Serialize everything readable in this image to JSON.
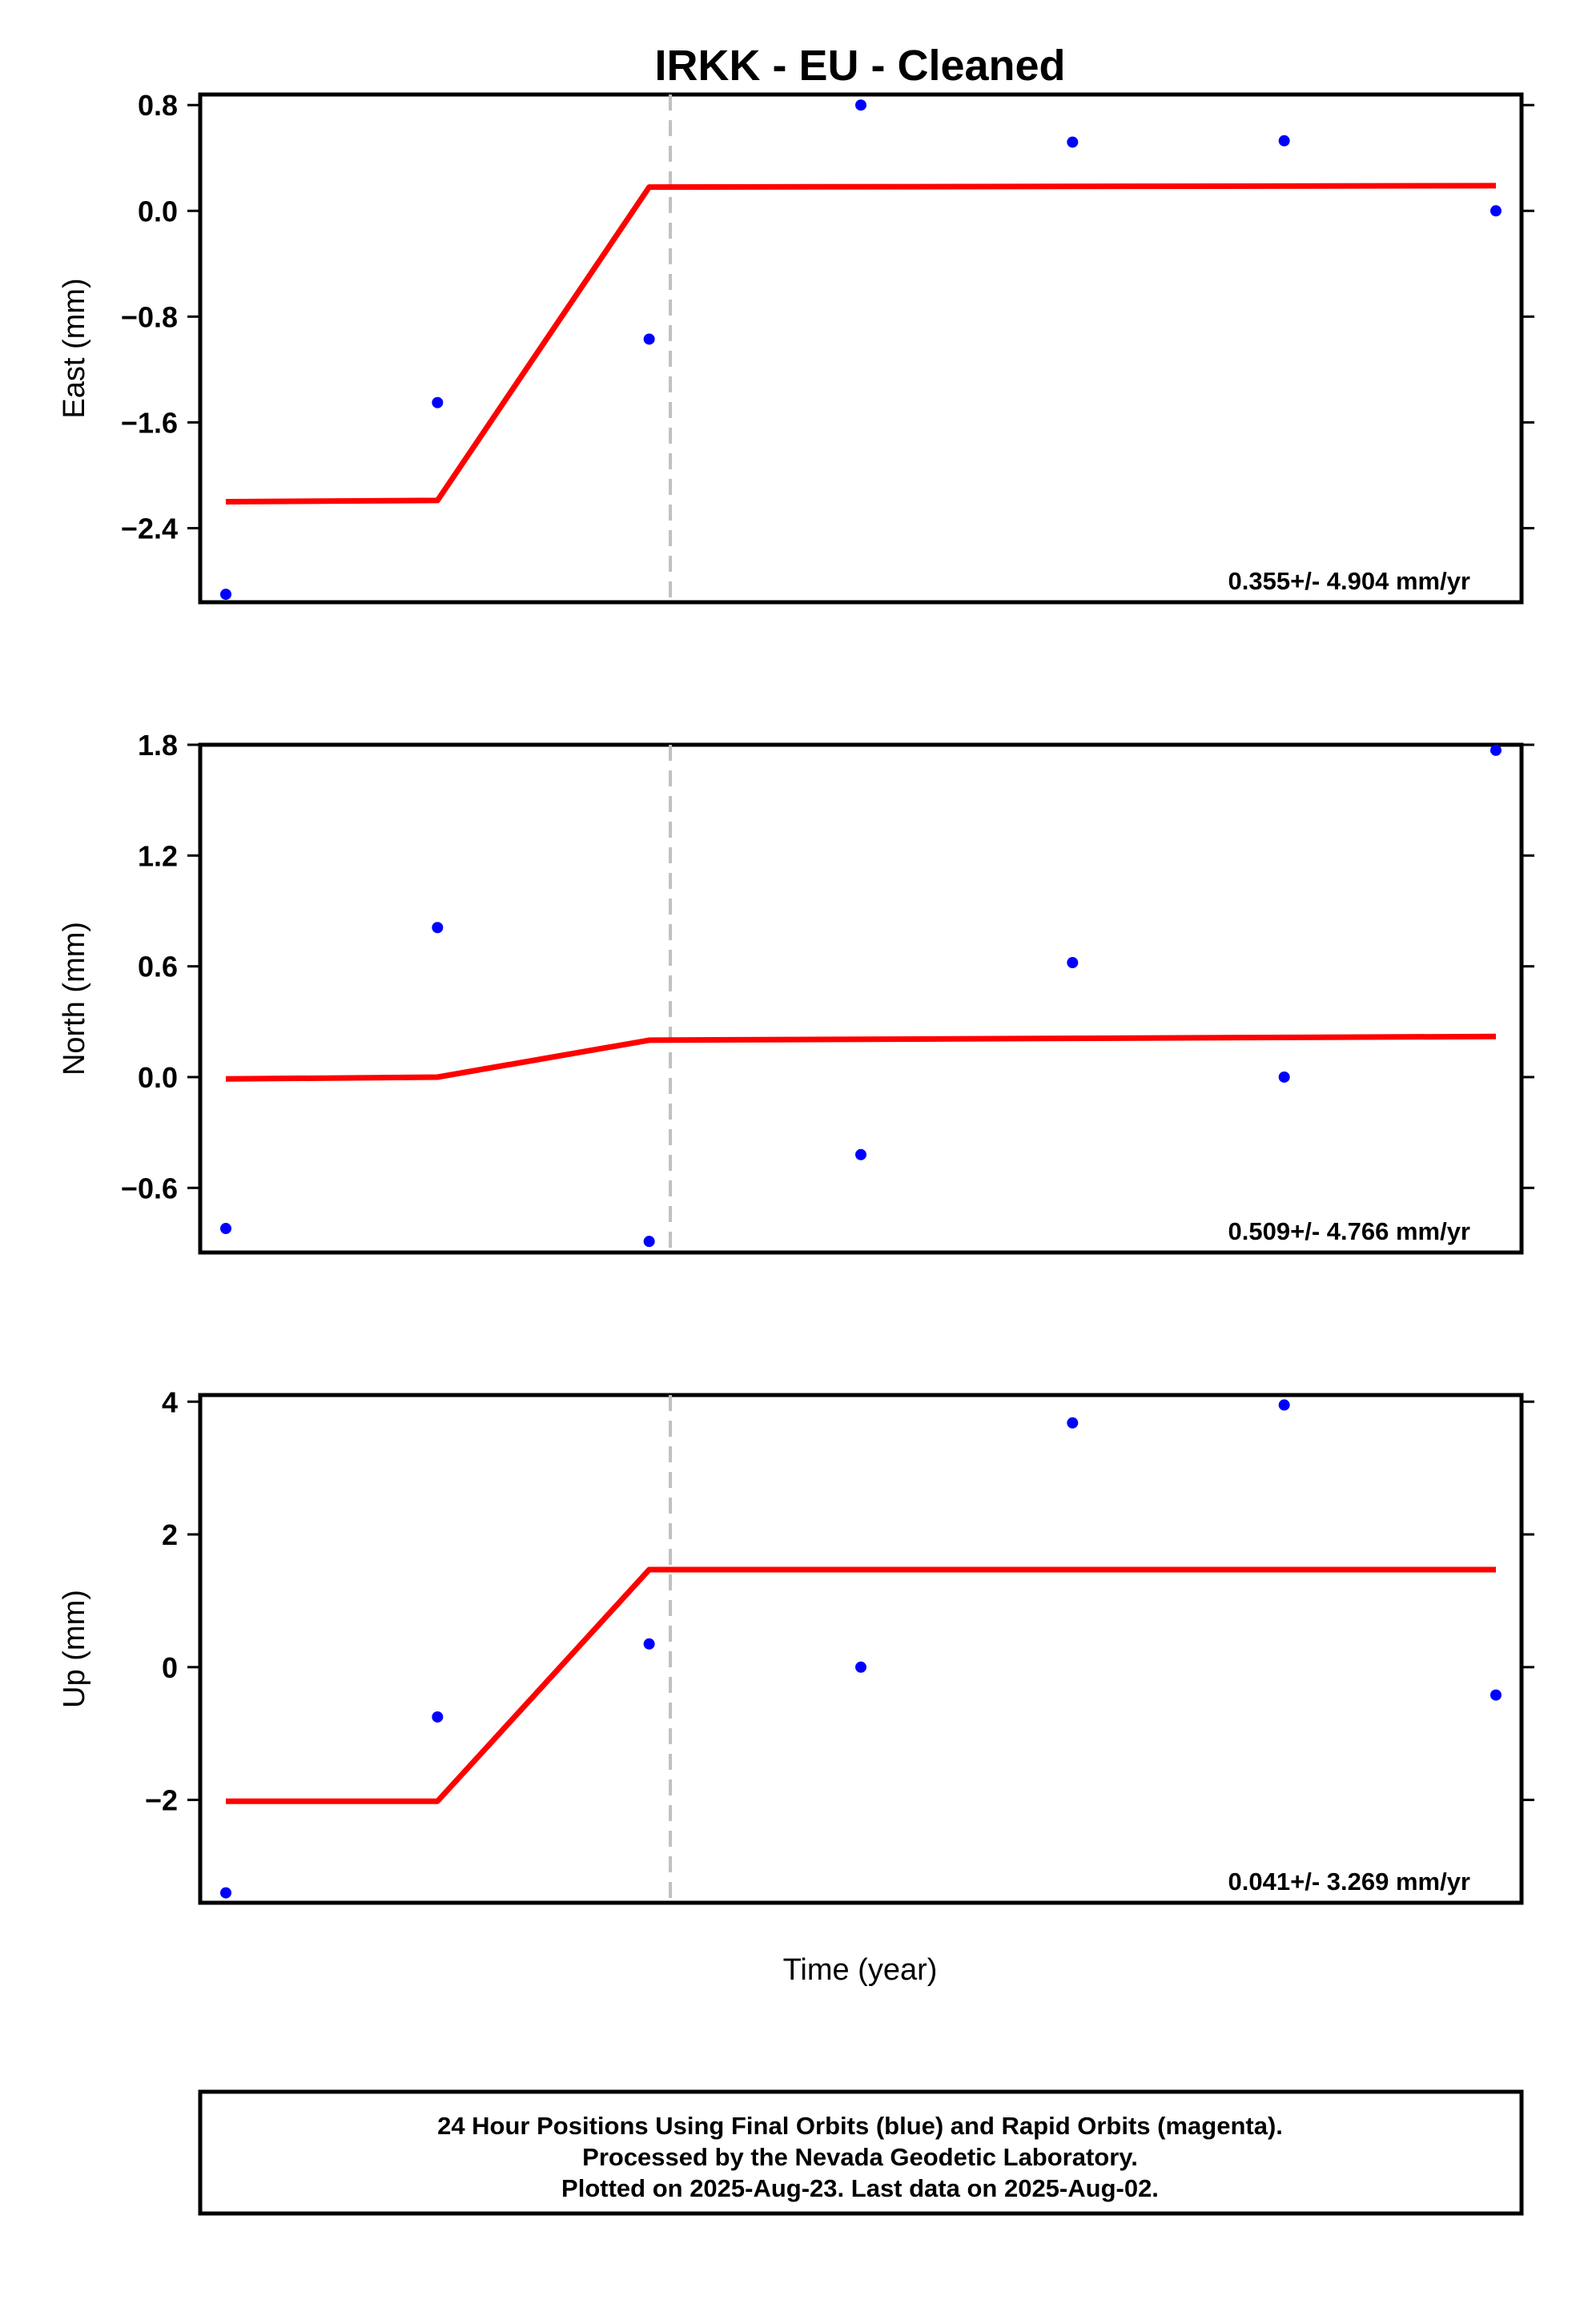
{
  "chart_data": {
    "type": "scatter",
    "title": "IRKK  - EU - Cleaned",
    "xlabel": "Time (year)",
    "x_tick_labels": [],
    "colors": {
      "points": "#0000ff",
      "fit": "#ff0000",
      "break": "#c0c0c0",
      "frame": "#000000"
    },
    "x_range": [
      0,
      6
    ],
    "break_x": 2.1,
    "panels": [
      {
        "ylabel": "East (mm)",
        "yticks": [
          0.8,
          0.0,
          -0.8,
          -1.6,
          -2.4
        ],
        "ytick_labels": [
          "0.8",
          "0.0",
          "−0.8",
          "−1.6",
          "−2.4"
        ],
        "ylim": [
          -2.96,
          0.88
        ],
        "points": [
          {
            "x": 0.0,
            "y": -2.9
          },
          {
            "x": 1.0,
            "y": -1.45
          },
          {
            "x": 2.0,
            "y": -0.97
          },
          {
            "x": 3.0,
            "y": 0.8
          },
          {
            "x": 4.0,
            "y": 0.52
          },
          {
            "x": 5.0,
            "y": 0.53
          },
          {
            "x": 6.0,
            "y": 0.0
          }
        ],
        "fit": [
          {
            "x": 0.0,
            "y": -2.2
          },
          {
            "x": 1.0,
            "y": -2.19
          },
          {
            "x": 2.0,
            "y": 0.18
          },
          {
            "x": 6.0,
            "y": 0.19
          }
        ],
        "rate_text": "0.355+/- 4.904 mm/yr"
      },
      {
        "ylabel": "North (mm)",
        "yticks": [
          1.8,
          1.2,
          0.6,
          0.0,
          -0.6
        ],
        "ytick_labels": [
          "1.8",
          "1.2",
          "0.6",
          "0.0",
          "−0.6"
        ],
        "ylim": [
          -0.95,
          1.8
        ],
        "points": [
          {
            "x": 0.0,
            "y": -0.82
          },
          {
            "x": 1.0,
            "y": 0.81
          },
          {
            "x": 2.0,
            "y": -0.89
          },
          {
            "x": 3.0,
            "y": -0.42
          },
          {
            "x": 4.0,
            "y": 0.62
          },
          {
            "x": 5.0,
            "y": 0.0
          },
          {
            "x": 6.0,
            "y": 1.77
          }
        ],
        "fit": [
          {
            "x": 0.0,
            "y": -0.01
          },
          {
            "x": 1.0,
            "y": 0.0
          },
          {
            "x": 2.0,
            "y": 0.2
          },
          {
            "x": 6.0,
            "y": 0.22
          }
        ],
        "rate_text": "0.509+/- 4.766 mm/yr"
      },
      {
        "ylabel": "Up (mm)",
        "yticks": [
          4,
          2,
          0,
          -2
        ],
        "ytick_labels": [
          "4",
          "2",
          "0",
          "−2"
        ],
        "ylim": [
          -3.55,
          4.1
        ],
        "points": [
          {
            "x": 0.0,
            "y": -3.4
          },
          {
            "x": 1.0,
            "y": -0.75
          },
          {
            "x": 2.0,
            "y": 0.35
          },
          {
            "x": 3.0,
            "y": 0.0
          },
          {
            "x": 4.0,
            "y": 3.68
          },
          {
            "x": 5.0,
            "y": 3.95
          },
          {
            "x": 6.0,
            "y": -0.42
          }
        ],
        "fit": [
          {
            "x": 0.0,
            "y": -2.02
          },
          {
            "x": 1.0,
            "y": -2.02
          },
          {
            "x": 2.0,
            "y": 1.47
          },
          {
            "x": 6.0,
            "y": 1.47
          }
        ],
        "rate_text": "0.041+/- 3.269 mm/yr"
      }
    ],
    "footer": [
      "24 Hour Positions Using Final Orbits (blue) and Rapid Orbits (magenta).",
      "Processed by the Nevada Geodetic Laboratory.",
      "Plotted on 2025-Aug-23. Last data on 2025-Aug-02."
    ]
  }
}
